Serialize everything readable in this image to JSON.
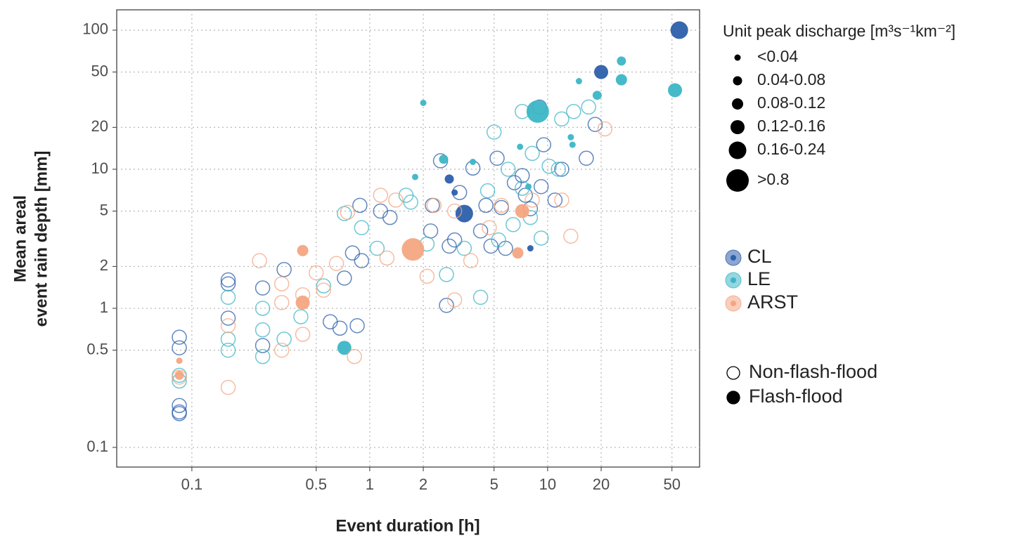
{
  "chart_data": {
    "type": "scatter",
    "xlabel": "Event duration [h]",
    "ylabel": [
      "Mean areal",
      "event rain depth [mm]"
    ],
    "log_x": true,
    "log_y": true,
    "grid": true,
    "xlim": [
      0.0378,
      71.5
    ],
    "ylim": [
      0.0722,
      140
    ],
    "xticks": [
      0.1,
      0.5,
      1,
      2,
      5,
      10,
      20,
      50
    ],
    "yticks": [
      0.1,
      0.5,
      1,
      2,
      5,
      10,
      20,
      50,
      100
    ],
    "size_legend_title": "Unit peak discharge [m³s⁻¹km⁻²]",
    "size_classes": [
      "<0.04",
      "0.04-0.08",
      "0.08-0.12",
      "0.12-0.16",
      "0.16-0.24",
      ">0.8"
    ],
    "flood_legend": [
      "Non-flash-flood",
      "Flash-flood"
    ],
    "series": [
      {
        "name": "CL",
        "color": "#2c5fab",
        "x": [
          55,
          20,
          3.4,
          2.8,
          3,
          8,
          0.085,
          0.085,
          0.085,
          0.085,
          0.085,
          0.16,
          0.16,
          0.16,
          0.25,
          0.25,
          0.33,
          0.6,
          0.68,
          0.72,
          0.85,
          0.8,
          0.9,
          0.88,
          1.15,
          1.3,
          2.2,
          2.25,
          2.5,
          2.8,
          3,
          3.2,
          3.8,
          4.2,
          4.5,
          4.8,
          5.2,
          5.5,
          5.8,
          6.5,
          7.2,
          7.5,
          8,
          9.2,
          9.5,
          11,
          12,
          16.5,
          18.5,
          2.7,
          9
        ],
        "values": [
          100,
          50,
          4.8,
          8.5,
          6.8,
          2.7,
          0.62,
          0.52,
          0.2,
          0.175,
          0.18,
          1.6,
          1.5,
          0.85,
          1.4,
          0.54,
          1.9,
          0.8,
          0.72,
          1.65,
          0.75,
          2.5,
          2.2,
          5.5,
          5,
          4.5,
          3.6,
          5.5,
          11.5,
          2.8,
          3.1,
          6.8,
          10.2,
          3.6,
          5.5,
          2.8,
          12,
          5.3,
          2.7,
          8,
          9,
          6.5,
          5.2,
          7.5,
          15,
          6,
          10,
          12,
          21,
          1.05,
          28
        ],
        "flash": [
          true,
          true,
          true,
          true,
          true,
          true,
          false,
          false,
          false,
          false,
          false,
          false,
          false,
          false,
          false,
          false,
          false,
          false,
          false,
          false,
          false,
          false,
          false,
          false,
          false,
          false,
          false,
          false,
          false,
          false,
          false,
          false,
          false,
          false,
          false,
          false,
          false,
          false,
          false,
          false,
          false,
          false,
          false,
          false,
          false,
          false,
          false,
          false,
          false,
          false,
          false
        ],
        "discharge": [
          "0.16-0.24",
          "0.12-0.16",
          "0.16-0.24",
          "0.04-0.08",
          "<0.04",
          "<0.04",
          null,
          null,
          null,
          null,
          null,
          null,
          null,
          null,
          null,
          null,
          null,
          null,
          null,
          null,
          null,
          null,
          null,
          null,
          null,
          null,
          null,
          null,
          null,
          null,
          null,
          null,
          null,
          null,
          null,
          null,
          null,
          null,
          null,
          null,
          null,
          null,
          null,
          null,
          null,
          null,
          null,
          null,
          null,
          null,
          null
        ]
      },
      {
        "name": "LE",
        "color": "#3cb6c6",
        "x": [
          52,
          8.8,
          0.72,
          26,
          26,
          19,
          15,
          2,
          1.8,
          2.6,
          3.8,
          7,
          7.8,
          13.5,
          13.8,
          0.085,
          0.085,
          0.16,
          0.16,
          0.16,
          0.25,
          0.25,
          0.25,
          0.33,
          0.41,
          0.55,
          0.72,
          0.9,
          1.1,
          1.7,
          1.6,
          2.1,
          2.7,
          3.4,
          4.2,
          4.6,
          5,
          5.3,
          6,
          6.4,
          7.2,
          8.2,
          9.2,
          10.2,
          11.5,
          12,
          14,
          17,
          8,
          7.2
        ],
        "values": [
          37,
          26,
          0.52,
          44,
          60,
          34,
          43,
          30,
          8.8,
          11.8,
          11.3,
          14.5,
          7.5,
          17,
          15,
          0.3,
          0.33,
          1.2,
          0.6,
          0.5,
          1,
          0.7,
          0.45,
          0.6,
          0.87,
          1.45,
          4.8,
          3.8,
          2.7,
          5.8,
          6.5,
          2.9,
          1.75,
          2.7,
          1.2,
          7,
          18.5,
          3.1,
          10,
          4,
          26,
          13,
          3.2,
          10.5,
          10,
          23,
          26,
          28,
          4.5,
          7.3
        ],
        "flash": [
          true,
          true,
          true,
          true,
          true,
          true,
          true,
          true,
          true,
          true,
          true,
          true,
          true,
          true,
          true,
          false,
          false,
          false,
          false,
          false,
          false,
          false,
          false,
          false,
          false,
          false,
          false,
          false,
          false,
          false,
          false,
          false,
          false,
          false,
          false,
          false,
          false,
          false,
          false,
          false,
          false,
          false,
          false,
          false,
          false,
          false,
          false,
          false,
          false,
          false
        ],
        "discharge": [
          "0.12-0.16",
          ">0.8",
          "0.12-0.16",
          "0.08-0.12",
          "0.04-0.08",
          "0.04-0.08",
          "<0.04",
          "<0.04",
          "<0.04",
          "0.04-0.08",
          "<0.04",
          "<0.04",
          "<0.04",
          "<0.04",
          "<0.04",
          null,
          null,
          null,
          null,
          null,
          null,
          null,
          null,
          null,
          null,
          null,
          null,
          null,
          null,
          null,
          null,
          null,
          null,
          null,
          null,
          null,
          null,
          null,
          null,
          null,
          null,
          null,
          null,
          null,
          null,
          null,
          null,
          null,
          null,
          null
        ]
      },
      {
        "name": "ARST",
        "color": "#f4a582",
        "x": [
          1.75,
          0.42,
          0.42,
          7.2,
          6.8,
          0.085,
          0.085,
          0.085,
          0.16,
          0.16,
          0.24,
          0.32,
          0.32,
          0.32,
          0.42,
          0.42,
          0.5,
          0.55,
          0.65,
          0.75,
          0.82,
          1.15,
          1.25,
          1.4,
          2.1,
          2.3,
          3,
          3,
          3.7,
          5.5,
          8.2,
          12,
          13.5,
          21,
          4.7
        ],
        "values": [
          2.65,
          1.1,
          2.6,
          5,
          2.5,
          0.42,
          0.33,
          0.32,
          0.75,
          0.27,
          2.2,
          1.5,
          1.1,
          0.5,
          1.25,
          0.65,
          1.8,
          1.35,
          2.1,
          4.9,
          0.45,
          6.5,
          2.3,
          6,
          1.7,
          5.5,
          1.15,
          5,
          2.2,
          5.5,
          6,
          6,
          3.3,
          19.5,
          3.8
        ],
        "flash": [
          true,
          true,
          true,
          true,
          true,
          true,
          true,
          false,
          false,
          false,
          false,
          false,
          false,
          false,
          false,
          false,
          false,
          false,
          false,
          false,
          false,
          false,
          false,
          false,
          false,
          false,
          false,
          false,
          false,
          false,
          false,
          false,
          false,
          false,
          false
        ],
        "discharge": [
          ">0.8",
          "0.12-0.16",
          "0.08-0.12",
          "0.12-0.16",
          "0.08-0.12",
          "<0.04",
          "0.04-0.08",
          null,
          null,
          null,
          null,
          null,
          null,
          null,
          null,
          null,
          null,
          null,
          null,
          null,
          null,
          null,
          null,
          null,
          null,
          null,
          null,
          null,
          null,
          null,
          null,
          null,
          null,
          null,
          null
        ]
      }
    ]
  }
}
